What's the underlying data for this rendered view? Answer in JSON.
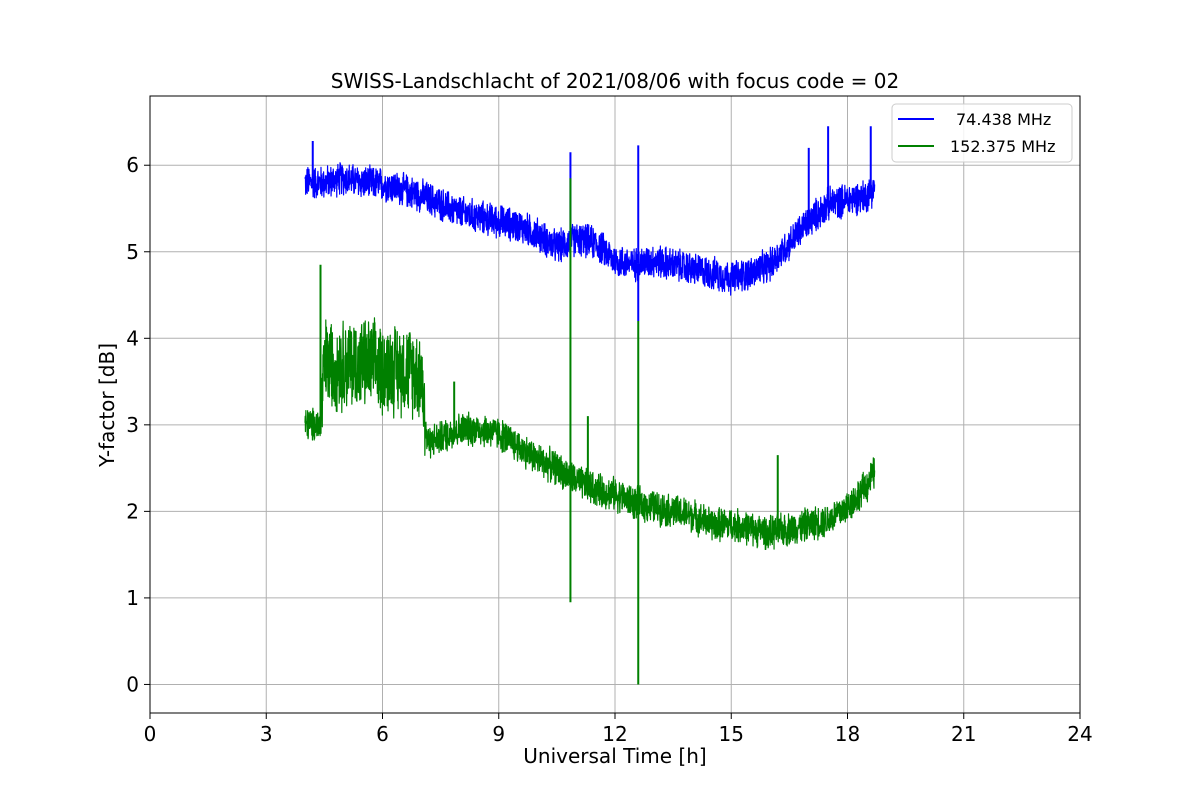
{
  "chart_data": {
    "type": "line",
    "title": "SWISS-Landschlacht of 2021/08/06 with focus code = 02",
    "xlabel": "Universal Time [h]",
    "ylabel": "Y-factor [dB]",
    "xlim": [
      0,
      24
    ],
    "ylim": [
      -0.33,
      6.8
    ],
    "xticks": [
      0,
      3,
      6,
      9,
      12,
      15,
      18,
      21,
      24
    ],
    "yticks": [
      0,
      1,
      2,
      3,
      4,
      5,
      6
    ],
    "grid": true,
    "legend_position": "top-right",
    "series": [
      {
        "name": "74.438 MHz",
        "color": "#0000ff",
        "x": [
          4.0,
          4.5,
          5.0,
          5.5,
          6.0,
          6.5,
          7.0,
          7.5,
          8.0,
          8.5,
          9.0,
          9.5,
          10.0,
          10.5,
          11.0,
          11.5,
          12.0,
          12.5,
          13.0,
          13.5,
          14.0,
          14.5,
          15.0,
          15.5,
          16.0,
          16.5,
          17.0,
          17.5,
          18.0,
          18.5,
          18.7
        ],
        "y": [
          5.8,
          5.8,
          5.85,
          5.8,
          5.78,
          5.72,
          5.65,
          5.55,
          5.45,
          5.4,
          5.35,
          5.3,
          5.2,
          5.05,
          5.15,
          5.1,
          4.9,
          4.85,
          4.9,
          4.85,
          4.8,
          4.75,
          4.7,
          4.75,
          4.85,
          5.1,
          5.35,
          5.55,
          5.6,
          5.65,
          5.75
        ],
        "spikes": [
          [
            4.2,
            6.28
          ],
          [
            10.85,
            6.15
          ],
          [
            12.6,
            6.23
          ],
          [
            12.6,
            4.2
          ],
          [
            17.5,
            6.45
          ],
          [
            18.6,
            6.45
          ],
          [
            17.0,
            6.2
          ]
        ]
      },
      {
        "name": "152.375 MHz",
        "color": "#008000",
        "x": [
          4.0,
          4.4,
          4.5,
          5.0,
          5.5,
          6.0,
          6.5,
          7.0,
          7.15,
          7.5,
          8.0,
          8.5,
          9.0,
          9.5,
          10.0,
          10.5,
          11.0,
          11.5,
          12.0,
          12.5,
          13.0,
          13.5,
          14.0,
          14.5,
          15.0,
          15.5,
          16.0,
          16.5,
          17.0,
          17.5,
          18.0,
          18.5,
          18.7
        ],
        "y": [
          3.0,
          3.0,
          3.7,
          3.7,
          3.7,
          3.65,
          3.65,
          3.6,
          2.8,
          2.85,
          2.95,
          2.95,
          2.9,
          2.75,
          2.6,
          2.5,
          2.35,
          2.25,
          2.2,
          2.1,
          2.05,
          2.0,
          1.95,
          1.85,
          1.85,
          1.8,
          1.75,
          1.8,
          1.85,
          1.9,
          2.05,
          2.3,
          2.45
        ],
        "spikes": [
          [
            4.4,
            4.85
          ],
          [
            7.85,
            3.5
          ],
          [
            10.85,
            0.95
          ],
          [
            10.85,
            5.85
          ],
          [
            12.6,
            0.0
          ],
          [
            12.6,
            4.2
          ],
          [
            16.2,
            2.65
          ],
          [
            11.3,
            3.1
          ]
        ]
      }
    ]
  }
}
